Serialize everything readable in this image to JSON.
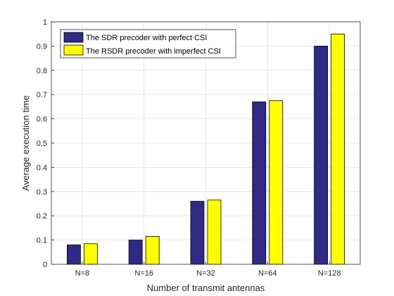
{
  "chart_data": {
    "type": "bar",
    "categories": [
      "N=8",
      "N=16",
      "N=32",
      "N=64",
      "N=128"
    ],
    "series": [
      {
        "name": "The SDR precoder with perfect CSI",
        "color": "#2e2a85",
        "values": [
          0.08,
          0.1,
          0.26,
          0.67,
          0.9
        ]
      },
      {
        "name": "The RSDR precoder with imperfect CSI",
        "color": "#ffff00",
        "values": [
          0.085,
          0.115,
          0.265,
          0.675,
          0.95
        ]
      }
    ],
    "title": "",
    "xlabel": "Number of transmit antennas",
    "ylabel": "Average execution time",
    "ylim": [
      0,
      1
    ],
    "yticks": [
      "0",
      "0.1",
      "0.2",
      "0.3",
      "0.4",
      "0.5",
      "0.6",
      "0.7",
      "0.8",
      "0.9",
      "1"
    ],
    "grid": true,
    "legend_position": "top-left"
  }
}
